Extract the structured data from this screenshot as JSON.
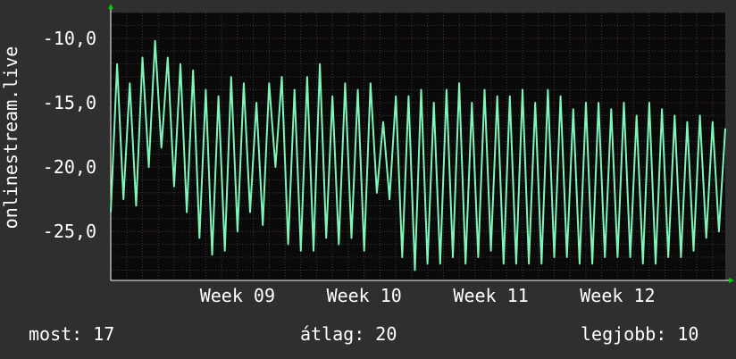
{
  "chart_data": {
    "type": "line",
    "ylabel": "onlinestream.live",
    "xlabel": "",
    "title": "",
    "y_axis_inverted": true,
    "ylim": [
      -8.0,
      -28.8
    ],
    "yticks": [
      -10.0,
      -15.0,
      -20.0,
      -25.0
    ],
    "ytick_labels": [
      "-10,0",
      "-15,0",
      "-20,0",
      "-25,0"
    ],
    "x_range_days": [
      0,
      48.5
    ],
    "xticks_days": [
      10,
      20,
      30,
      40
    ],
    "xtick_labels": [
      "Week 09",
      "Week 10",
      "Week 11",
      "Week 12"
    ],
    "grid": true,
    "series": [
      {
        "name": "",
        "color": "#7ff5b9",
        "x": [
          0,
          0.5,
          1,
          1.5,
          2,
          2.5,
          3,
          3.5,
          4,
          4.5,
          5,
          5.5,
          6,
          6.5,
          7,
          7.5,
          8,
          8.5,
          9,
          9.5,
          10,
          10.5,
          11,
          11.5,
          12,
          12.5,
          13,
          13.5,
          14,
          14.5,
          15,
          15.5,
          16,
          16.5,
          17,
          17.5,
          18,
          18.5,
          19,
          19.5,
          20,
          20.5,
          21,
          21.5,
          22,
          22.5,
          23,
          23.5,
          24,
          24.5,
          25,
          25.5,
          26,
          26.5,
          27,
          27.5,
          28,
          28.5,
          29,
          29.5,
          30,
          30.5,
          31,
          31.5,
          32,
          32.5,
          33,
          33.5,
          34,
          34.5,
          35,
          35.5,
          36,
          36.5,
          37,
          37.5,
          38,
          38.5,
          39,
          39.5,
          40,
          40.5,
          41,
          41.5,
          42,
          42.5,
          43,
          43.5,
          44,
          44.5,
          45,
          45.5,
          46,
          46.5,
          47,
          47.5,
          48,
          48.5
        ],
        "values": [
          -23.5,
          -12.0,
          -22.5,
          -13.5,
          -23.0,
          -11.5,
          -20.0,
          -10.2,
          -18.5,
          -11.5,
          -21.5,
          -12.0,
          -23.5,
          -12.5,
          -25.5,
          -14.0,
          -26.8,
          -14.5,
          -26.5,
          -13.0,
          -25.0,
          -13.5,
          -23.5,
          -15.0,
          -24.5,
          -13.5,
          -20.0,
          -13.0,
          -26.0,
          -14.0,
          -26.5,
          -13.0,
          -26.5,
          -12.0,
          -25.5,
          -14.5,
          -26.0,
          -13.5,
          -25.5,
          -14.0,
          -26.5,
          -13.5,
          -22.0,
          -16.5,
          -22.5,
          -14.5,
          -27.0,
          -14.5,
          -28.0,
          -14.0,
          -27.5,
          -15.0,
          -27.5,
          -14.0,
          -27.0,
          -13.5,
          -27.5,
          -15.0,
          -27.0,
          -14.0,
          -26.5,
          -14.5,
          -27.5,
          -14.5,
          -27.5,
          -14.0,
          -27.5,
          -15.0,
          -27.5,
          -14.0,
          -27.0,
          -14.5,
          -27.0,
          -15.5,
          -27.5,
          -15.0,
          -27.5,
          -15.0,
          -27.0,
          -15.5,
          -27.0,
          -15.0,
          -27.0,
          -16.0,
          -27.5,
          -15.0,
          -27.5,
          -15.5,
          -27.0,
          -16.0,
          -27.0,
          -16.5,
          -26.5,
          -16.0,
          -25.5,
          -16.5,
          -25.0,
          -17.0
        ]
      }
    ]
  },
  "legend_stats": {
    "current": "most: 17",
    "average": "átlag: 20",
    "best": "legjobb: 10"
  },
  "colors": {
    "background": "#2f2f2f",
    "plot_background": "#0a0a0a",
    "line": "#7ff5b9",
    "grid_major": "#5a2020",
    "grid_minor": "#3a3a3a",
    "axis": "#ffffff",
    "arrow": "#00cc00"
  }
}
